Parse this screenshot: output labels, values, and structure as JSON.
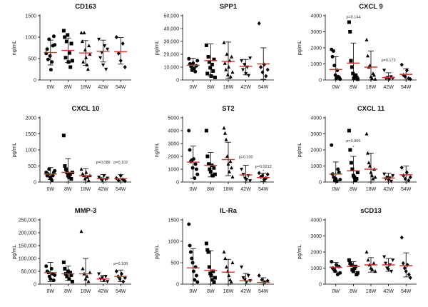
{
  "chart_data": [
    {
      "type": "scatter",
      "title": "CD163",
      "ylabel": "ng/mL",
      "categories": [
        "0W",
        "8W",
        "18W",
        "42W",
        "54W"
      ],
      "ylim": [
        0,
        1500
      ],
      "yticks": [
        0,
        500,
        1000,
        1500
      ],
      "points": [
        [
          620,
          720,
          480,
          950,
          560,
          240,
          420,
          800,
          1020,
          820
        ],
        [
          1150,
          1000,
          520,
          900,
          1050,
          420,
          630,
          300,
          850,
          450
        ],
        [
          1100,
          900,
          420,
          1100,
          700,
          520,
          350,
          250,
          800,
          600
        ],
        [
          950,
          520,
          640,
          350,
          800,
          250,
          720
        ],
        [
          1000,
          620,
          450,
          850,
          300
        ]
      ],
      "means": [
        640,
        690,
        630,
        670,
        660
      ],
      "sd": [
        [
          350,
          930
        ],
        [
          410,
          980
        ],
        [
          340,
          920
        ],
        [
          420,
          930
        ],
        [
          370,
          990
        ]
      ],
      "annotations": []
    },
    {
      "type": "scatter",
      "title": "SPP1",
      "ylabel": "pg/mL",
      "categories": [
        "0W",
        "8W",
        "18W",
        "42W",
        "54W"
      ],
      "ylim": [
        0,
        50000
      ],
      "yticks": [
        0,
        10000,
        20000,
        30000,
        40000,
        50000
      ],
      "yticklabels": [
        "0",
        "10,000",
        "20,000",
        "30,000",
        "40,000",
        "50,000"
      ],
      "points": [
        [
          16500,
          12500,
          10500,
          8000,
          13000,
          9000,
          6500,
          11000,
          15000
        ],
        [
          27000,
          5000,
          18000,
          14000,
          9500,
          3000,
          12000,
          7000,
          16000,
          2000
        ],
        [
          29000,
          13000,
          8000,
          20000,
          4000,
          10000,
          15000,
          2500,
          18000,
          6000
        ],
        [
          15000,
          8000,
          12000,
          5000,
          10000,
          3500,
          17000
        ],
        [
          44000,
          10000,
          6000,
          12000,
          3000,
          8000
        ]
      ],
      "means": [
        11500,
        15000,
        14500,
        10500,
        12500
      ],
      "sd": [
        [
          6500,
          17000
        ],
        [
          3000,
          28000
        ],
        [
          1000,
          29500
        ],
        [
          4000,
          16000
        ],
        [
          500,
          25000
        ]
      ],
      "annotations": []
    },
    {
      "type": "scatter",
      "title": "CXCL 9",
      "ylabel": "pg/mL",
      "categories": [
        "0W",
        "8W",
        "18W",
        "42W",
        "54W"
      ],
      "ylim": [
        0,
        4000
      ],
      "yticks": [
        0,
        1000,
        2000,
        3000,
        4000
      ],
      "points": [
        [
          1900,
          1450,
          1800,
          900,
          300,
          100,
          600,
          200,
          150,
          50
        ],
        [
          3600,
          3000,
          1200,
          800,
          400,
          100,
          200,
          300,
          150,
          50
        ],
        [
          2500,
          1500,
          800,
          900,
          200,
          100,
          400,
          300,
          50
        ],
        [
          600,
          100,
          150,
          50,
          200,
          100
        ],
        [
          950,
          300,
          200,
          600,
          100,
          50
        ]
      ],
      "means": [
        650,
        1050,
        800,
        150,
        350
      ],
      "sd": [
        [
          0,
          1450
        ],
        [
          0,
          2300
        ],
        [
          0,
          1800
        ],
        [
          0,
          450
        ],
        [
          0,
          700
        ]
      ],
      "annotations": [
        {
          "text": "p=0.144",
          "x": "8W",
          "y": 3850
        },
        {
          "text": "p=0.173",
          "x": "42W",
          "y": 1150
        }
      ]
    },
    {
      "type": "scatter",
      "title": "CXCL 10",
      "ylabel": "pg/mL",
      "categories": [
        "0W",
        "8W",
        "18W",
        "42W",
        "54W"
      ],
      "ylim": [
        0,
        2000
      ],
      "yticks": [
        0,
        500,
        1000,
        1500,
        2000
      ],
      "points": [
        [
          300,
          200,
          250,
          400,
          150,
          100,
          50,
          200,
          300,
          350
        ],
        [
          1450,
          500,
          400,
          300,
          200,
          150,
          250,
          100,
          300
        ],
        [
          400,
          250,
          200,
          100,
          300,
          150,
          50,
          200
        ],
        [
          150,
          100,
          50,
          200,
          80,
          120
        ],
        [
          120,
          50,
          200,
          80,
          30
        ]
      ],
      "means": [
        250,
        300,
        200,
        110,
        110
      ],
      "sd": [
        [
          80,
          450
        ],
        [
          0,
          730
        ],
        [
          0,
          420
        ],
        [
          0,
          230
        ],
        [
          0,
          230
        ]
      ],
      "annotations": [
        {
          "text": "p=0.088",
          "x": "42W",
          "y": 580
        },
        {
          "text": "p=0.102",
          "x": "54W",
          "y": 580
        }
      ]
    },
    {
      "type": "scatter",
      "title": "ST2",
      "ylabel": "ng/mL",
      "categories": [
        "0W",
        "8W",
        "18W",
        "42W",
        "54W"
      ],
      "ylim": [
        0,
        5000
      ],
      "yticks": [
        0,
        1000,
        2000,
        3000,
        4000,
        5000
      ],
      "points": [
        [
          4000,
          2500,
          1600,
          1700,
          1100,
          1800,
          300,
          1400,
          1000,
          600
        ],
        [
          4000,
          2000,
          1400,
          1000,
          800,
          1300,
          500,
          1100,
          600
        ],
        [
          4200,
          3800,
          3300,
          2000,
          1400,
          800,
          1600,
          1100,
          400
        ],
        [
          1000,
          600,
          300,
          200,
          500,
          100
        ],
        [
          700,
          400,
          500,
          200,
          300,
          600
        ]
      ],
      "means": [
        1550,
        1300,
        1750,
        550,
        350
      ],
      "sd": [
        [
          300,
          2800
        ],
        [
          400,
          2300
        ],
        [
          500,
          3100
        ],
        [
          0,
          1300
        ],
        [
          50,
          700
        ]
      ],
      "annotations": [
        {
          "text": "p=0.100",
          "x": "42W",
          "y": 1850
        },
        {
          "text": "p=0.0212",
          "x": "54W",
          "y": 1100
        },
        {
          "text": "*",
          "x": "54W",
          "y": 750
        }
      ]
    },
    {
      "type": "scatter",
      "title": "CXCL 11",
      "ylabel": "pg/mL",
      "categories": [
        "0W",
        "8W",
        "18W",
        "42W",
        "54W"
      ],
      "ylim": [
        0,
        4000
      ],
      "yticks": [
        0,
        1000,
        2000,
        3000,
        4000
      ],
      "points": [
        [
          2300,
          500,
          300,
          100,
          200,
          50,
          800,
          600,
          150
        ],
        [
          3200,
          2000,
          1200,
          800,
          400,
          300,
          100,
          200,
          600
        ],
        [
          3000,
          1800,
          1200,
          1000,
          600,
          400,
          200,
          800,
          300
        ],
        [
          500,
          200,
          300,
          100,
          250,
          50,
          400
        ],
        [
          900,
          400,
          200,
          600,
          100,
          300
        ]
      ],
      "means": [
        500,
        700,
        800,
        250,
        450
      ],
      "sd": [
        [
          0,
          1250
        ],
        [
          0,
          1600
        ],
        [
          0,
          1800
        ],
        [
          0,
          550
        ],
        [
          0,
          1000
        ]
      ],
      "annotations": [
        {
          "text": "p=0.006",
          "x": "8W",
          "y": 2500
        },
        {
          "text": "*",
          "x": "8W",
          "y": 2100
        }
      ]
    },
    {
      "type": "scatter",
      "title": "MMP-3",
      "ylabel": "pg/mL",
      "categories": [
        "0W",
        "8W",
        "18W",
        "42W",
        "54W"
      ],
      "ylim": [
        0,
        250000
      ],
      "yticks": [
        0,
        50000,
        100000,
        150000,
        200000,
        250000
      ],
      "yticklabels": [
        "0",
        "50,000",
        "100,000",
        "150,000",
        "200,000",
        "250,000"
      ],
      "points": [
        [
          70000,
          50000,
          45000,
          30000,
          20000,
          60000,
          40000,
          15000,
          35000
        ],
        [
          85000,
          60000,
          40000,
          30000,
          50000,
          20000,
          45000,
          35000,
          10000
        ],
        [
          205000,
          60000,
          40000,
          20000,
          30000,
          10000,
          45000
        ],
        [
          40000,
          20000,
          25000,
          15000,
          30000,
          10000
        ],
        [
          50000,
          30000,
          20000,
          40000,
          10000,
          25000
        ]
      ],
      "means": [
        45000,
        40000,
        40000,
        20000,
        30000
      ],
      "sd": [
        [
          10000,
          85000
        ],
        [
          15000,
          70000
        ],
        [
          0,
          100000
        ],
        [
          10000,
          35000
        ],
        [
          10000,
          55000
        ]
      ],
      "annotations": [
        {
          "text": "p=0.108",
          "x": "54W",
          "y": 75000
        }
      ]
    },
    {
      "type": "scatter",
      "title": "IL-Ra",
      "ylabel": "pg/mL",
      "categories": [
        "0W",
        "8W",
        "18W",
        "42W",
        "54W"
      ],
      "ylim": [
        0,
        1500
      ],
      "yticks": [
        0,
        500,
        1000,
        1500
      ],
      "points": [
        [
          1400,
          900,
          750,
          600,
          500,
          300,
          100,
          400,
          200,
          50
        ],
        [
          950,
          800,
          750,
          400,
          250,
          200,
          100,
          300,
          50,
          150
        ],
        [
          750,
          600,
          400,
          300,
          200,
          100,
          50,
          500
        ],
        [
          400,
          150,
          100,
          50,
          200,
          80
        ],
        [
          200,
          100,
          50,
          80
        ]
      ],
      "means": [
        380,
        320,
        280,
        80,
        40
      ],
      "sd": [
        [
          0,
          830
        ],
        [
          0,
          780
        ],
        [
          0,
          580
        ],
        [
          0,
          250
        ],
        [
          0,
          150
        ]
      ],
      "annotations": []
    },
    {
      "type": "scatter",
      "title": "sCD13",
      "ylabel": "pg/mL",
      "categories": [
        "0W",
        "8W",
        "18W",
        "42W",
        "54W"
      ],
      "ylim": [
        0,
        4000
      ],
      "yticks": [
        0,
        1000,
        2000,
        3000,
        4000
      ],
      "points": [
        [
          1400,
          1000,
          900,
          800,
          1200,
          600,
          1100,
          700
        ],
        [
          1500,
          1300,
          1200,
          900,
          800,
          1000,
          1100,
          600,
          700
        ],
        [
          2000,
          1500,
          1200,
          1000,
          900,
          1300,
          800
        ],
        [
          1700,
          1300,
          1000,
          900,
          1200,
          800,
          1500
        ],
        [
          2900,
          1300,
          1000,
          800,
          1200,
          600,
          400
        ]
      ],
      "means": [
        1050,
        1100,
        1200,
        1200,
        1150
      ],
      "sd": [
        [
          750,
          1350
        ],
        [
          800,
          1400
        ],
        [
          750,
          1650
        ],
        [
          800,
          1600
        ],
        [
          450,
          1950
        ]
      ],
      "annotations": []
    }
  ]
}
